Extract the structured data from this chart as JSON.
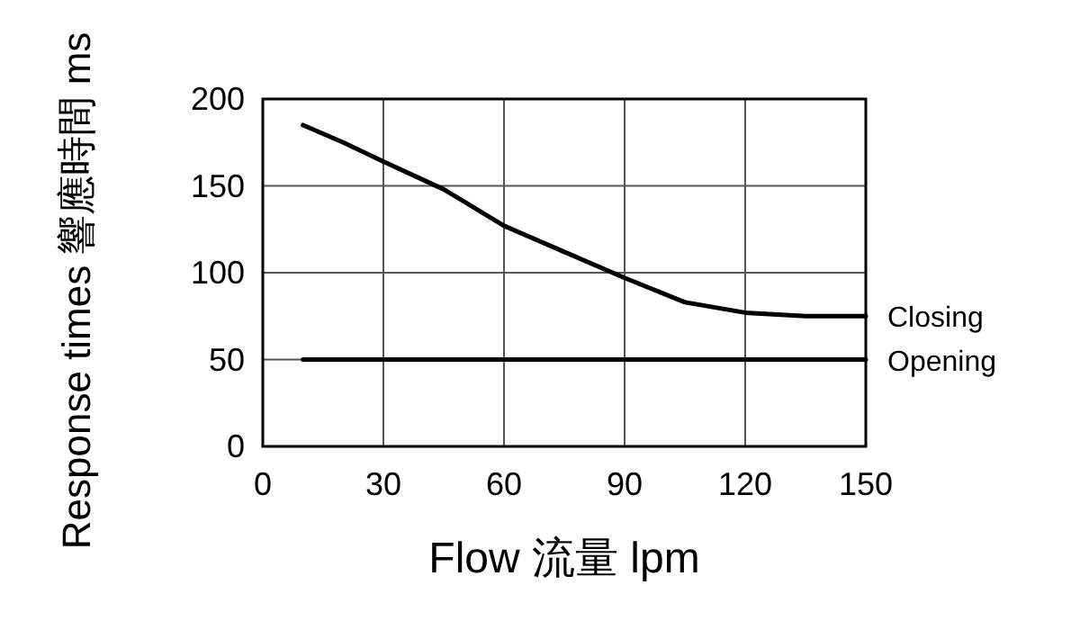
{
  "chart_data": {
    "type": "line",
    "xlabel": "Flow 流量 lpm",
    "ylabel": "Response times 響應時間 ms",
    "xlim": [
      0,
      150
    ],
    "ylim": [
      0,
      200
    ],
    "xticks": [
      0,
      30,
      60,
      90,
      120,
      150
    ],
    "yticks": [
      0,
      50,
      100,
      150,
      200
    ],
    "grid": true,
    "line_style": "solid",
    "marker": "none",
    "series": [
      {
        "name": "Closing",
        "color": "#000000",
        "x": [
          10,
          20,
          30,
          45,
          60,
          75,
          90,
          105,
          120,
          135,
          150
        ],
        "values": [
          185,
          175,
          164,
          148,
          127,
          112,
          97,
          83,
          77,
          75,
          75
        ]
      },
      {
        "name": "Opening",
        "color": "#000000",
        "x": [
          10,
          150
        ],
        "values": [
          50,
          50
        ]
      }
    ]
  }
}
